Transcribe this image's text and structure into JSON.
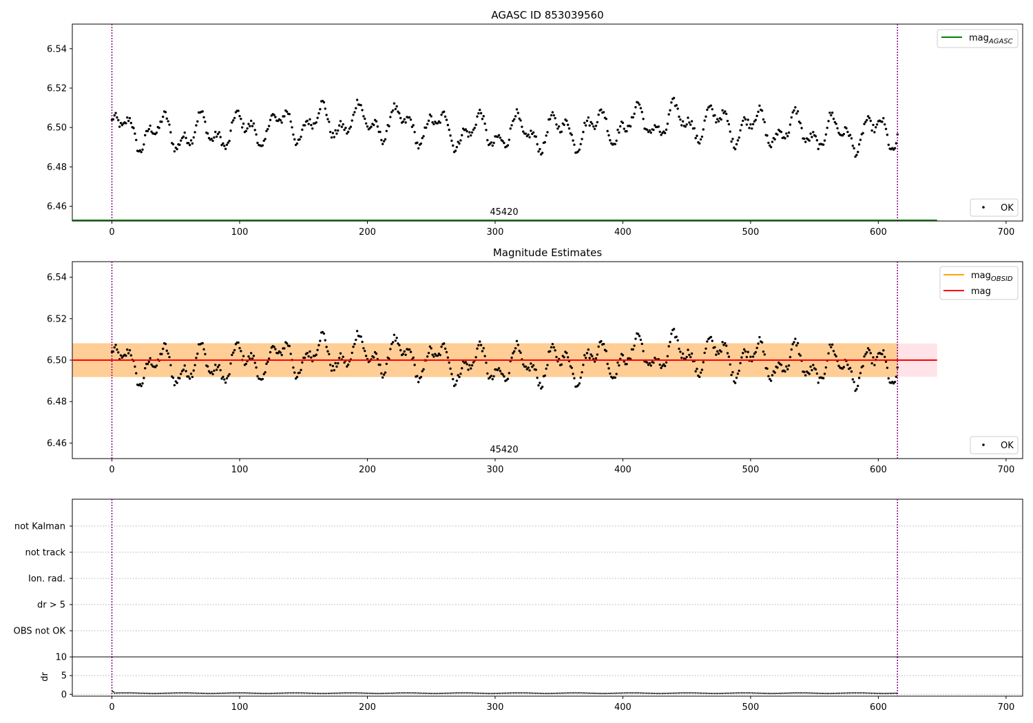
{
  "chart_data": [
    {
      "type": "scatter",
      "title": "AGASC ID 853039560",
      "xlabel": "",
      "ylabel": "",
      "xlim": [
        -31,
        713
      ],
      "ylim": [
        6.4525,
        6.5525
      ],
      "x_ticks": [
        "0",
        "100",
        "200",
        "300",
        "400",
        "500",
        "600",
        "700"
      ],
      "y_ticks": [
        "6.46",
        "6.48",
        "6.50",
        "6.52",
        "6.54"
      ],
      "vlines": [
        0,
        615
      ],
      "obsid_label": "45420",
      "legend_lines": [
        {
          "label": "mag",
          "subscript": "AGASC",
          "color": "#008000"
        }
      ],
      "legend_points": [
        {
          "label": "OK",
          "color": "#000000"
        }
      ],
      "series": [
        {
          "name": "OK",
          "color": "#000000",
          "n_points": 616,
          "x_range": [
            0,
            615
          ],
          "mean": 6.5,
          "min": 6.483,
          "max": 6.522
        },
        {
          "name": "mag AGASC",
          "color": "#008000",
          "value": 6.453,
          "x_range": [
            -31,
            646
          ]
        }
      ]
    },
    {
      "type": "scatter",
      "title": "Magnitude Estimates",
      "xlabel": "",
      "ylabel": "",
      "xlim": [
        -31,
        713
      ],
      "ylim": [
        6.4525,
        6.5475
      ],
      "x_ticks": [
        "0",
        "100",
        "200",
        "300",
        "400",
        "500",
        "600",
        "700"
      ],
      "y_ticks": [
        "6.46",
        "6.48",
        "6.50",
        "6.52",
        "6.54"
      ],
      "vlines": [
        0,
        615
      ],
      "obsid_label": "45420",
      "legend_lines": [
        {
          "label": "mag",
          "subscript": "OBSID",
          "color": "#ffa500"
        },
        {
          "label": "mag",
          "subscript": "",
          "color": "#ff0000"
        }
      ],
      "legend_points": [
        {
          "label": "OK",
          "color": "#000000"
        }
      ],
      "bands": [
        {
          "color": "#ffc0cb",
          "low": 6.492,
          "high": 6.508,
          "x_range": [
            -31,
            646
          ]
        },
        {
          "color": "#ffa500",
          "low": 6.492,
          "high": 6.508,
          "x_range": [
            -31,
            615
          ]
        }
      ],
      "series": [
        {
          "name": "OK",
          "color": "#000000",
          "n_points": 616,
          "x_range": [
            0,
            615
          ],
          "mean": 6.5,
          "min": 6.483,
          "max": 6.522
        },
        {
          "name": "mag",
          "color": "#ff0000",
          "value": 6.5,
          "x_range": [
            -31,
            646
          ]
        },
        {
          "name": "mag OBSID",
          "color": "#ffa500",
          "value": 6.5,
          "x_range": [
            -31,
            615
          ]
        }
      ]
    },
    {
      "type": "scatter",
      "title": "",
      "xlabel": "",
      "ylabel": "",
      "xlim": [
        -31,
        713
      ],
      "categories": [
        "not Kalman",
        "not track",
        "Ion. rad.",
        "dr > 5",
        "OBS not OK"
      ],
      "vlines": [
        0,
        615
      ],
      "series": []
    },
    {
      "type": "line",
      "title": "",
      "xlabel": "",
      "ylabel": "dr",
      "xlim": [
        -31,
        713
      ],
      "ylim": [
        -0.5,
        10
      ],
      "x_ticks": [
        "0",
        "100",
        "200",
        "300",
        "400",
        "500",
        "600",
        "700"
      ],
      "y_ticks": [
        "0",
        "5",
        "10"
      ],
      "vlines": [
        0,
        615
      ],
      "series": [
        {
          "name": "dr",
          "color": "#000000",
          "n_points": 616,
          "x_range": [
            0,
            615
          ],
          "typical": 0.3,
          "max": 0.8
        }
      ]
    }
  ]
}
